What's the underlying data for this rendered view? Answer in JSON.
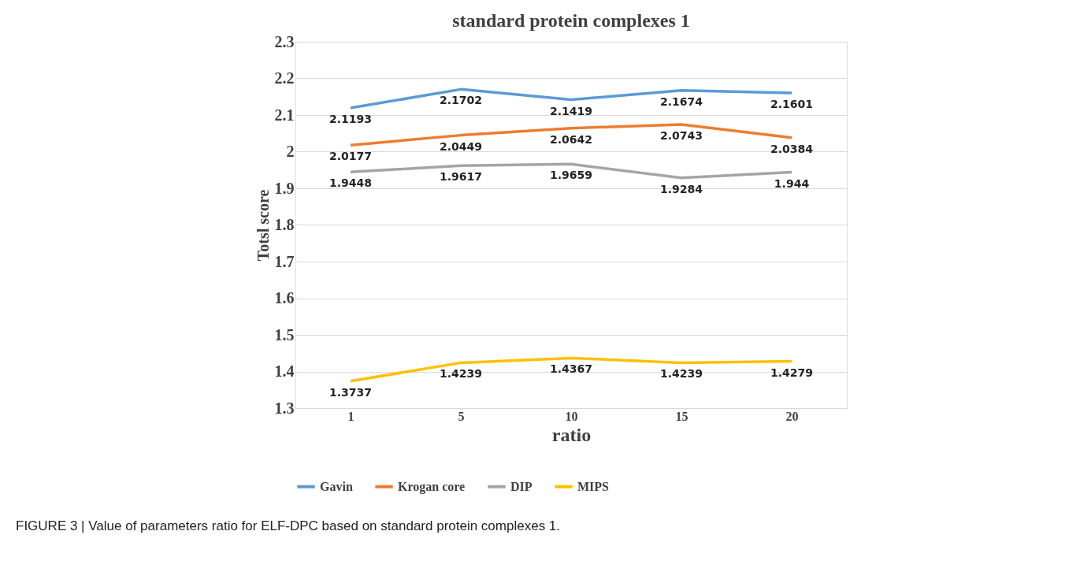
{
  "chart_data": {
    "type": "line",
    "title": "standard protein complexes 1",
    "xlabel": "ratio",
    "ylabel": "Totsl score",
    "categories": [
      "1",
      "5",
      "10",
      "15",
      "20"
    ],
    "series": [
      {
        "name": "Gavin",
        "color": "#5b9bd5",
        "values": [
          2.1193,
          2.1702,
          2.1419,
          2.1674,
          2.1601
        ]
      },
      {
        "name": "Krogan core",
        "color": "#ed7d31",
        "values": [
          2.0177,
          2.0449,
          2.0642,
          2.0743,
          2.0384
        ]
      },
      {
        "name": "DIP",
        "color": "#a5a5a5",
        "values": [
          1.9448,
          1.9617,
          1.9659,
          1.9284,
          1.944
        ]
      },
      {
        "name": "MIPS",
        "color": "#ffc000",
        "values": [
          1.3737,
          1.4239,
          1.4367,
          1.4239,
          1.4279
        ]
      }
    ],
    "ylim": [
      1.3,
      2.3
    ],
    "yticks": [
      1.3,
      1.4,
      1.5,
      1.6,
      1.7,
      1.8,
      1.9,
      2,
      2.1,
      2.2,
      2.3
    ],
    "grid": "y",
    "legend": "bottom",
    "marker": "none",
    "line_style": "solid",
    "data_labels": true,
    "annotations": [
      "FIGURE 3 | Value of parameters ratio for ELF-DPC based on standard protein complexes 1."
    ]
  }
}
